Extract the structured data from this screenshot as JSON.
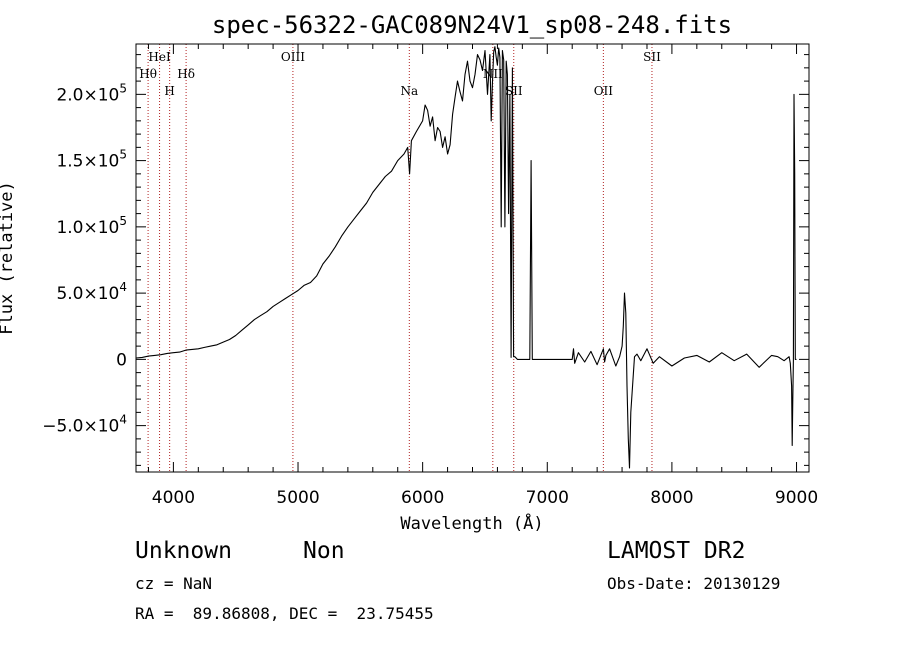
{
  "chart_data": {
    "type": "line",
    "title": "spec-56322-GAC089N24V1_sp08-248.fits",
    "xlabel": "Wavelength (Å)",
    "ylabel": "Flux (relative)",
    "xlim": [
      3700,
      9100
    ],
    "ylim": [
      -85000,
      238000
    ],
    "x_ticks": [
      4000,
      5000,
      6000,
      7000,
      8000,
      9000
    ],
    "y_ticks": [
      {
        "value": -50000,
        "mantissa": "−5.0×10",
        "exp": "4"
      },
      {
        "value": 0,
        "mantissa": "0",
        "exp": ""
      },
      {
        "value": 50000,
        "mantissa": "5.0×10",
        "exp": "4"
      },
      {
        "value": 100000,
        "mantissa": "1.0×10",
        "exp": "5"
      },
      {
        "value": 150000,
        "mantissa": "1.5×10",
        "exp": "5"
      },
      {
        "value": 200000,
        "mantissa": "2.0×10",
        "exp": "5"
      }
    ],
    "grid": false,
    "lines": [
      {
        "wavelength": 3797,
        "label": "Hθ",
        "row": 2
      },
      {
        "wavelength": 3889,
        "label": "HeI",
        "row": 1
      },
      {
        "wavelength": 3970,
        "label": "H",
        "row": 3
      },
      {
        "wavelength": 4102,
        "label": "Hδ",
        "row": 2
      },
      {
        "wavelength": 4959,
        "label": "OIII",
        "row": 1
      },
      {
        "wavelength": 5893,
        "label": "Na",
        "row": 3
      },
      {
        "wavelength": 6563,
        "label": "NII",
        "row": 2
      },
      {
        "wavelength": 6731,
        "label": "SII",
        "row": 3
      },
      {
        "wavelength": 7450,
        "label": "OII",
        "row": 3
      },
      {
        "wavelength": 7840,
        "label": "SII",
        "row": 1
      }
    ],
    "series": [
      {
        "x": [
          3700,
          3750,
          3800,
          3850,
          3900,
          3950,
          4000,
          4050,
          4100,
          4150,
          4200,
          4250,
          4300,
          4350,
          4400,
          4450,
          4500,
          4550,
          4600,
          4650,
          4700,
          4750,
          4800,
          4850,
          4900,
          4950,
          5000,
          5050,
          5100,
          5150,
          5200,
          5250,
          5300,
          5350,
          5400,
          5450,
          5500,
          5550,
          5600,
          5650,
          5700,
          5750,
          5800,
          5850,
          5880,
          5895,
          5910,
          5950,
          6000,
          6020,
          6040,
          6060,
          6080,
          6100,
          6120,
          6140,
          6160,
          6180,
          6200,
          6220,
          6240,
          6260,
          6280,
          6300,
          6320,
          6340,
          6360,
          6380,
          6400,
          6420,
          6440,
          6460,
          6480,
          6500,
          6520,
          6540,
          6550,
          6560,
          6570,
          6580,
          6590,
          6600,
          6610,
          6620,
          6630,
          6640,
          6650,
          6660,
          6670,
          6680,
          6690,
          6700,
          6710,
          6720,
          6730,
          6740,
          6750,
          6760,
          6800,
          6850,
          6860,
          6870,
          6880,
          6890,
          6900,
          7000,
          7100,
          7200,
          7210,
          7220,
          7250,
          7300,
          7350,
          7400,
          7450,
          7460,
          7470,
          7500,
          7550,
          7580,
          7600,
          7610,
          7620,
          7630,
          7640,
          7650,
          7660,
          7670,
          7700,
          7720,
          7750,
          7800,
          7850,
          7900,
          8000,
          8100,
          8200,
          8300,
          8400,
          8500,
          8600,
          8700,
          8800,
          8850,
          8900,
          8940,
          8950,
          8960,
          8965,
          8970,
          8975,
          8980,
          8985,
          8990,
          9000
        ],
        "y": [
          1000,
          1500,
          2500,
          3000,
          3500,
          4500,
          5000,
          5500,
          7000,
          7500,
          8000,
          9000,
          10000,
          11000,
          13000,
          15000,
          18000,
          22000,
          26000,
          30000,
          33000,
          36000,
          40000,
          43000,
          46000,
          49000,
          52000,
          56000,
          58000,
          63000,
          72000,
          78000,
          85000,
          93000,
          100000,
          106000,
          112000,
          118000,
          126000,
          132000,
          138000,
          142000,
          150000,
          155000,
          160000,
          140000,
          165000,
          172000,
          180000,
          192000,
          188000,
          176000,
          183000,
          165000,
          175000,
          172000,
          160000,
          168000,
          155000,
          162000,
          185000,
          198000,
          210000,
          202000,
          195000,
          215000,
          225000,
          210000,
          205000,
          215000,
          230000,
          226000,
          218000,
          233000,
          200000,
          230000,
          180000,
          208000,
          232000,
          236000,
          228000,
          222000,
          235000,
          228000,
          100000,
          233000,
          226000,
          100000,
          225000,
          215000,
          110000,
          200000,
          1500,
          220000,
          2000,
          2000,
          1000,
          0,
          0,
          0,
          0,
          150000,
          0,
          0,
          0,
          0,
          0,
          0,
          8000,
          -3000,
          5000,
          -2000,
          6000,
          -4000,
          8000,
          -2000,
          3000,
          8000,
          -5000,
          2000,
          10000,
          25000,
          50000,
          35000,
          -20000,
          -60000,
          -82000,
          -40000,
          2000,
          4000,
          -1000,
          8000,
          -3000,
          2000,
          -5000,
          1000,
          3000,
          -2000,
          5000,
          -1000,
          4000,
          -6000,
          3000,
          2000,
          -1000,
          2000,
          -3000,
          -20000,
          -65000,
          -30000,
          0,
          200000,
          140000,
          0,
          0
        ]
      }
    ]
  },
  "footer": {
    "object_class": "Unknown",
    "object_subclass": "Non",
    "redshift": "cz = NaN",
    "coords": "RA =  89.86808, DEC =  23.75455",
    "release": "LAMOST DR2",
    "obs_date": "Obs-Date: 20130129"
  }
}
